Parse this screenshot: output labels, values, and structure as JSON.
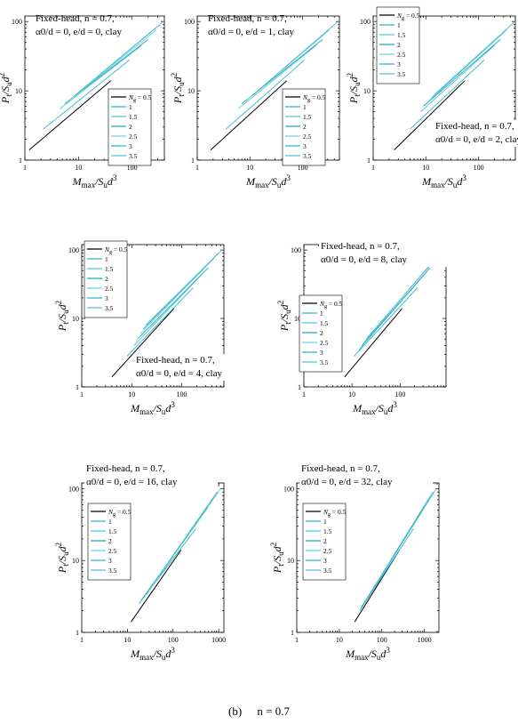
{
  "legend_title": "N",
  "legend_title_sub": "g",
  "series_names": [
    "0.5",
    "1",
    "1.5",
    "2",
    "2.5",
    "3",
    "3.5"
  ],
  "series_colors": [
    "#000000",
    "#2EB8C8",
    "#4FC6D6",
    "#1FA8BC",
    "#6FD0DE",
    "#33B5C9",
    "#58C2D4"
  ],
  "axis": {
    "x_main": "M",
    "x_sub": "max",
    "x_rest": "/S",
    "x_sub2": "u",
    "x_tail": "d",
    "x_sup": "3",
    "y_main": "P",
    "y_sub": "t",
    "y_rest": "/S",
    "y_sub2": "u",
    "y_tail": "d",
    "y_sup": "2"
  },
  "caption": {
    "label": "(b)",
    "text": "n = 0.7"
  },
  "chart_data": [
    {
      "type": "line",
      "title_line1": "Fixed-head,  n = 0.7,",
      "title_line2": "α0/d = 0,  e/d = 0,  clay",
      "xlim": [
        1,
        400
      ],
      "ylim": [
        1,
        120
      ],
      "x_ticks": [
        "1",
        "10",
        "100"
      ],
      "y_ticks": [
        "1",
        "10",
        "100"
      ],
      "log_x": true,
      "log_y": true,
      "legend": "bottom-right",
      "series": [
        {
          "name": "0.5",
          "x": [
            1.2,
            40
          ],
          "y": [
            1.4,
            14
          ]
        },
        {
          "name": "1",
          "x": [
            2.2,
            90
          ],
          "y": [
            2.8,
            28
          ]
        },
        {
          "name": "1.5",
          "x": [
            4.5,
            150
          ],
          "y": [
            5.5,
            45
          ]
        },
        {
          "name": "2",
          "x": [
            5.5,
            200
          ],
          "y": [
            6.5,
            55
          ]
        },
        {
          "name": "2.5",
          "x": [
            7,
            280
          ],
          "y": [
            7.5,
            75
          ]
        },
        {
          "name": "3",
          "x": [
            8.5,
            330
          ],
          "y": [
            8.5,
            90
          ]
        },
        {
          "name": "3.5",
          "x": [
            10,
            380
          ],
          "y": [
            9.5,
            100
          ]
        }
      ]
    },
    {
      "type": "line",
      "title_line1": "Fixed-head,  n = 0.7,",
      "title_line2": "α0/d = 0,  e/d = 1,  clay",
      "xlim": [
        1,
        500
      ],
      "ylim": [
        1,
        120
      ],
      "x_ticks": [
        "1",
        "10",
        "100"
      ],
      "y_ticks": [
        "1",
        "10",
        "100"
      ],
      "log_x": true,
      "log_y": true,
      "legend": "bottom-right",
      "series": [
        {
          "name": "0.5",
          "x": [
            1.8,
            50
          ],
          "y": [
            1.4,
            14
          ]
        },
        {
          "name": "1",
          "x": [
            3.5,
            110
          ],
          "y": [
            2.8,
            28
          ]
        },
        {
          "name": "1.5",
          "x": [
            6,
            180
          ],
          "y": [
            5.5,
            45
          ]
        },
        {
          "name": "2",
          "x": [
            7,
            240
          ],
          "y": [
            6.5,
            55
          ]
        },
        {
          "name": "2.5",
          "x": [
            9,
            320
          ],
          "y": [
            7.5,
            75
          ]
        },
        {
          "name": "3",
          "x": [
            11,
            400
          ],
          "y": [
            8.5,
            90
          ]
        },
        {
          "name": "3.5",
          "x": [
            13,
            470
          ],
          "y": [
            9.5,
            100
          ]
        }
      ]
    },
    {
      "type": "line",
      "title_line1": "Fixed-head,  n = 0.7,",
      "title_line2": "α0/d = 0,  e/d = 2,  clay",
      "xlim": [
        1,
        500
      ],
      "ylim": [
        1,
        120
      ],
      "x_ticks": [
        "1",
        "10",
        "100"
      ],
      "y_ticks": [
        "1",
        "10",
        "100"
      ],
      "log_x": true,
      "log_y": true,
      "legend": "top-left",
      "series": [
        {
          "name": "0.5",
          "x": [
            2.5,
            55
          ],
          "y": [
            1.4,
            14
          ]
        },
        {
          "name": "1",
          "x": [
            5,
            130
          ],
          "y": [
            2.8,
            28
          ]
        },
        {
          "name": "1.5",
          "x": [
            8,
            200
          ],
          "y": [
            5,
            45
          ]
        },
        {
          "name": "2",
          "x": [
            9,
            260
          ],
          "y": [
            6,
            55
          ]
        },
        {
          "name": "2.5",
          "x": [
            11,
            340
          ],
          "y": [
            7,
            75
          ]
        },
        {
          "name": "3",
          "x": [
            13,
            420
          ],
          "y": [
            8,
            90
          ]
        },
        {
          "name": "3.5",
          "x": [
            15,
            490
          ],
          "y": [
            9,
            100
          ]
        }
      ]
    },
    {
      "type": "line",
      "title_line1": "Fixed-head,  n = 0.7,",
      "title_line2": "α0/d = 0,  e/d = 4,  clay",
      "xlim": [
        1,
        700
      ],
      "ylim": [
        1,
        120
      ],
      "x_ticks": [
        "1",
        "10",
        "100"
      ],
      "y_ticks": [
        "1",
        "10",
        "100"
      ],
      "log_x": true,
      "log_y": true,
      "legend": "top-left",
      "series": [
        {
          "name": "0.5",
          "x": [
            4,
            70
          ],
          "y": [
            1.4,
            14
          ]
        },
        {
          "name": "1",
          "x": [
            8,
            170
          ],
          "y": [
            2.8,
            28
          ]
        },
        {
          "name": "1.5",
          "x": [
            11,
            260
          ],
          "y": [
            4,
            45
          ]
        },
        {
          "name": "2",
          "x": [
            13,
            340
          ],
          "y": [
            5,
            55
          ]
        },
        {
          "name": "2.5",
          "x": [
            15,
            440
          ],
          "y": [
            6,
            75
          ]
        },
        {
          "name": "3",
          "x": [
            17,
            540
          ],
          "y": [
            7,
            90
          ]
        },
        {
          "name": "3.5",
          "x": [
            19,
            640
          ],
          "y": [
            8,
            100
          ]
        }
      ]
    },
    {
      "type": "line",
      "title_line1": "Fixed-head,  n = 0.7,",
      "title_line2": "α0/d = 0,  e/d = 8,  clay",
      "xlim": [
        1,
        900
      ],
      "ylim": [
        1,
        120
      ],
      "x_ticks": [
        "1",
        "10",
        "100"
      ],
      "y_ticks": [
        "1",
        "10",
        "100"
      ],
      "log_x": true,
      "log_y": true,
      "legend": "left",
      "series": [
        {
          "name": "0.5",
          "x": [
            7,
            110
          ],
          "y": [
            1.4,
            14
          ]
        },
        {
          "name": "1",
          "x": [
            11,
            230
          ],
          "y": [
            2.8,
            28
          ]
        },
        {
          "name": "1.5",
          "x": [
            14,
            330
          ],
          "y": [
            3.5,
            45
          ]
        },
        {
          "name": "2",
          "x": [
            16,
            420
          ],
          "y": [
            4,
            55
          ]
        },
        {
          "name": "2.5",
          "x": [
            18,
            540
          ],
          "y": [
            4.5,
            75
          ]
        },
        {
          "name": "3",
          "x": [
            20,
            680
          ],
          "y": [
            5,
            90
          ]
        },
        {
          "name": "3.5",
          "x": [
            22,
            800
          ],
          "y": [
            5.5,
            100
          ]
        }
      ]
    },
    {
      "type": "line",
      "title_line1": "Fixed-head,  n = 0.7,",
      "title_line2": "α0/d = 0,  e/d = 16,  clay",
      "xlim": [
        1,
        1300
      ],
      "ylim": [
        1,
        120
      ],
      "x_ticks": [
        "1",
        "10",
        "100",
        "1000"
      ],
      "y_ticks": [
        "1",
        "10",
        "100"
      ],
      "log_x": true,
      "log_y": true,
      "legend": "top-left",
      "series": [
        {
          "name": "0.5",
          "x": [
            12,
            150
          ],
          "y": [
            1.4,
            14
          ]
        },
        {
          "name": "1",
          "x": [
            18,
            320
          ],
          "y": [
            2.5,
            28
          ]
        },
        {
          "name": "1.5",
          "x": [
            20,
            460
          ],
          "y": [
            2.8,
            45
          ]
        },
        {
          "name": "2",
          "x": [
            22,
            580
          ],
          "y": [
            3,
            55
          ]
        },
        {
          "name": "2.5",
          "x": [
            24,
            760
          ],
          "y": [
            3.2,
            75
          ]
        },
        {
          "name": "3",
          "x": [
            26,
            930
          ],
          "y": [
            3.4,
            90
          ]
        },
        {
          "name": "3.5",
          "x": [
            28,
            1100
          ],
          "y": [
            3.6,
            100
          ]
        }
      ]
    },
    {
      "type": "line",
      "title_line1": "Fixed-head,  n = 0.7,",
      "title_line2": "α0/d = 0,  e/d = 32,  clay",
      "xlim": [
        1,
        2200
      ],
      "ylim": [
        1,
        120
      ],
      "x_ticks": [
        "1",
        "10",
        "100",
        "1000"
      ],
      "y_ticks": [
        "1",
        "10",
        "100"
      ],
      "log_x": true,
      "log_y": true,
      "legend": "top-left",
      "series": [
        {
          "name": "0.5",
          "x": [
            23,
            260
          ],
          "y": [
            1.4,
            14
          ]
        },
        {
          "name": "1",
          "x": [
            30,
            560
          ],
          "y": [
            2,
            28
          ]
        },
        {
          "name": "1.5",
          "x": [
            32,
            820
          ],
          "y": [
            2.2,
            45
          ]
        },
        {
          "name": "2",
          "x": [
            34,
            1000
          ],
          "y": [
            2.3,
            55
          ]
        },
        {
          "name": "2.5",
          "x": [
            36,
            1300
          ],
          "y": [
            2.4,
            75
          ]
        },
        {
          "name": "3",
          "x": [
            38,
            1600
          ],
          "y": [
            2.5,
            90
          ]
        },
        {
          "name": "3.5",
          "x": [
            40,
            1900
          ],
          "y": [
            2.6,
            100
          ]
        }
      ]
    }
  ]
}
